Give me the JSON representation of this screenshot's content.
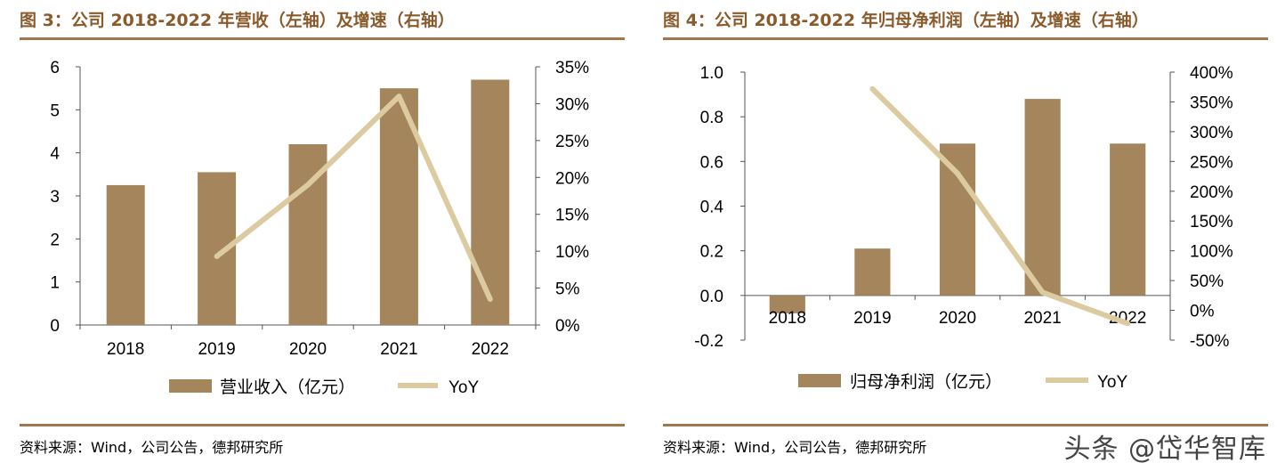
{
  "colors": {
    "bar": "#a5855b",
    "line": "#dccaa0",
    "accent": "#8b5a2b",
    "rule": "#a0784a"
  },
  "chart_data": [
    {
      "type": "bar",
      "title": "图 3：公司 2018-2022 年营收（左轴）及增速（右轴）",
      "categories": [
        "2018",
        "2019",
        "2020",
        "2021",
        "2022"
      ],
      "series": [
        {
          "name": "营业收入（亿元）",
          "axis": "left",
          "kind": "bar",
          "values": [
            3.25,
            3.55,
            4.2,
            5.5,
            5.7
          ]
        },
        {
          "name": "YoY",
          "axis": "right",
          "kind": "line",
          "values": [
            null,
            0.093,
            0.19,
            0.31,
            0.035
          ]
        }
      ],
      "ylim_left": [
        0,
        6
      ],
      "yticks_left": [
        "0",
        "1",
        "2",
        "3",
        "4",
        "5",
        "6"
      ],
      "ylim_right": [
        0,
        0.35
      ],
      "yticks_right": [
        "0%",
        "5%",
        "10%",
        "15%",
        "20%",
        "25%",
        "30%",
        "35%"
      ],
      "legend": [
        "营业收入（亿元）",
        "YoY"
      ],
      "legend_position": "bottom",
      "source": "资料来源：Wind，公司公告，德邦研究所"
    },
    {
      "type": "bar",
      "title": "图 4：公司 2018-2022 年归母净利润（左轴）及增速（右轴）",
      "categories": [
        "2018",
        "2019",
        "2020",
        "2021",
        "2022"
      ],
      "series": [
        {
          "name": "归母净利润（亿元）",
          "axis": "left",
          "kind": "bar",
          "values": [
            -0.08,
            0.21,
            0.68,
            0.88,
            0.68
          ]
        },
        {
          "name": "YoY",
          "axis": "right",
          "kind": "line",
          "values": [
            null,
            3.72,
            2.3,
            0.3,
            -0.22
          ]
        }
      ],
      "ylim_left": [
        -0.2,
        1.0
      ],
      "yticks_left": [
        "-0.2",
        "0.0",
        "0.2",
        "0.4",
        "0.6",
        "0.8",
        "1.0"
      ],
      "ylim_right": [
        -0.5,
        4.0
      ],
      "yticks_right": [
        "-50%",
        "0%",
        "50%",
        "100%",
        "150%",
        "200%",
        "250%",
        "300%",
        "350%",
        "400%"
      ],
      "legend": [
        "归母净利润（亿元）",
        "YoY"
      ],
      "legend_position": "bottom",
      "source": "资料来源：Wind，公司公告，德邦研究所"
    }
  ],
  "watermark": "头条 @岱华智库"
}
